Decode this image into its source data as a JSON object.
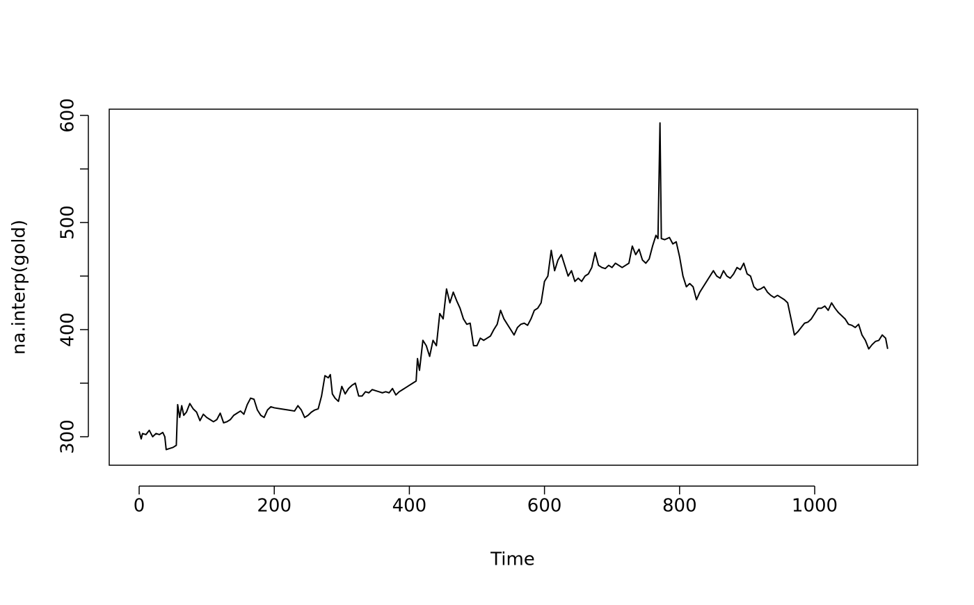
{
  "chart_data": {
    "type": "line",
    "x_label": "Time",
    "y_label": "na.interp(gold)",
    "x": [
      0,
      3,
      5,
      10,
      15,
      20,
      25,
      30,
      35,
      38,
      40,
      45,
      50,
      55,
      57,
      60,
      63,
      66,
      70,
      75,
      80,
      85,
      90,
      95,
      100,
      105,
      110,
      115,
      120,
      125,
      130,
      135,
      140,
      145,
      150,
      155,
      160,
      165,
      170,
      175,
      180,
      185,
      190,
      195,
      200,
      210,
      220,
      230,
      235,
      240,
      245,
      250,
      255,
      260,
      265,
      270,
      275,
      280,
      283,
      286,
      290,
      295,
      300,
      305,
      310,
      315,
      320,
      325,
      330,
      335,
      340,
      345,
      350,
      355,
      360,
      365,
      370,
      375,
      380,
      385,
      390,
      395,
      400,
      405,
      410,
      412,
      415,
      420,
      425,
      430,
      435,
      440,
      445,
      450,
      455,
      460,
      465,
      470,
      475,
      480,
      485,
      490,
      495,
      500,
      505,
      510,
      515,
      520,
      525,
      530,
      535,
      540,
      545,
      550,
      555,
      560,
      565,
      570,
      575,
      580,
      585,
      590,
      595,
      600,
      605,
      610,
      615,
      620,
      625,
      630,
      635,
      640,
      645,
      650,
      655,
      660,
      665,
      670,
      675,
      680,
      685,
      690,
      695,
      700,
      705,
      710,
      715,
      720,
      725,
      730,
      735,
      740,
      745,
      750,
      755,
      760,
      765,
      768,
      771,
      773,
      778,
      785,
      790,
      795,
      800,
      805,
      810,
      815,
      820,
      825,
      830,
      835,
      840,
      845,
      850,
      855,
      860,
      865,
      870,
      875,
      880,
      885,
      890,
      895,
      900,
      905,
      910,
      915,
      920,
      925,
      930,
      935,
      940,
      945,
      950,
      955,
      960,
      965,
      970,
      975,
      980,
      985,
      990,
      995,
      1000,
      1005,
      1010,
      1015,
      1020,
      1025,
      1030,
      1035,
      1040,
      1045,
      1050,
      1055,
      1060,
      1065,
      1070,
      1075,
      1080,
      1085,
      1090,
      1095,
      1100,
      1105,
      1108
    ],
    "values": [
      305,
      298,
      303,
      302,
      306,
      300,
      303,
      302,
      304,
      300,
      288,
      289,
      290,
      292,
      330,
      318,
      329,
      320,
      323,
      331,
      326,
      323,
      315,
      321,
      318,
      316,
      314,
      316,
      322,
      313,
      314,
      316,
      320,
      322,
      324,
      321,
      330,
      336,
      335,
      325,
      320,
      318,
      325,
      328,
      327,
      326,
      325,
      324,
      329,
      325,
      318,
      320,
      323,
      325,
      326,
      338,
      357,
      355,
      358,
      340,
      336,
      333,
      347,
      340,
      345,
      348,
      350,
      338,
      338,
      342,
      341,
      344,
      343,
      342,
      341,
      342,
      341,
      345,
      339,
      342,
      344,
      346,
      348,
      350,
      352,
      373,
      362,
      390,
      385,
      375,
      390,
      385,
      415,
      410,
      438,
      425,
      435,
      427,
      420,
      410,
      405,
      406,
      385,
      385,
      392,
      390,
      392,
      394,
      400,
      405,
      418,
      410,
      405,
      400,
      395,
      402,
      405,
      406,
      404,
      410,
      418,
      420,
      425,
      445,
      450,
      474,
      455,
      465,
      470,
      460,
      450,
      455,
      445,
      448,
      445,
      450,
      452,
      458,
      472,
      460,
      458,
      457,
      460,
      458,
      462,
      460,
      458,
      460,
      462,
      478,
      470,
      475,
      465,
      462,
      466,
      478,
      488,
      485,
      593,
      485,
      484,
      486,
      480,
      482,
      468,
      450,
      440,
      443,
      440,
      428,
      435,
      440,
      445,
      450,
      455,
      450,
      448,
      455,
      450,
      448,
      452,
      458,
      456,
      462,
      452,
      450,
      440,
      437,
      438,
      440,
      435,
      432,
      430,
      432,
      430,
      428,
      425,
      410,
      395,
      398,
      402,
      406,
      407,
      410,
      415,
      420,
      420,
      422,
      418,
      425,
      420,
      416,
      413,
      410,
      405,
      404,
      402,
      405,
      395,
      390,
      382,
      386,
      389,
      390,
      395,
      392,
      382
    ],
    "color": "#000000",
    "xlim": [
      -44.3,
      1152.4
    ],
    "ylim": [
      273.4,
      605.8
    ],
    "xticks": [
      0,
      200,
      400,
      600,
      800,
      1000
    ],
    "yticks": [
      300,
      400,
      500,
      600
    ],
    "yminor_ticks": [
      350,
      450,
      550
    ]
  }
}
